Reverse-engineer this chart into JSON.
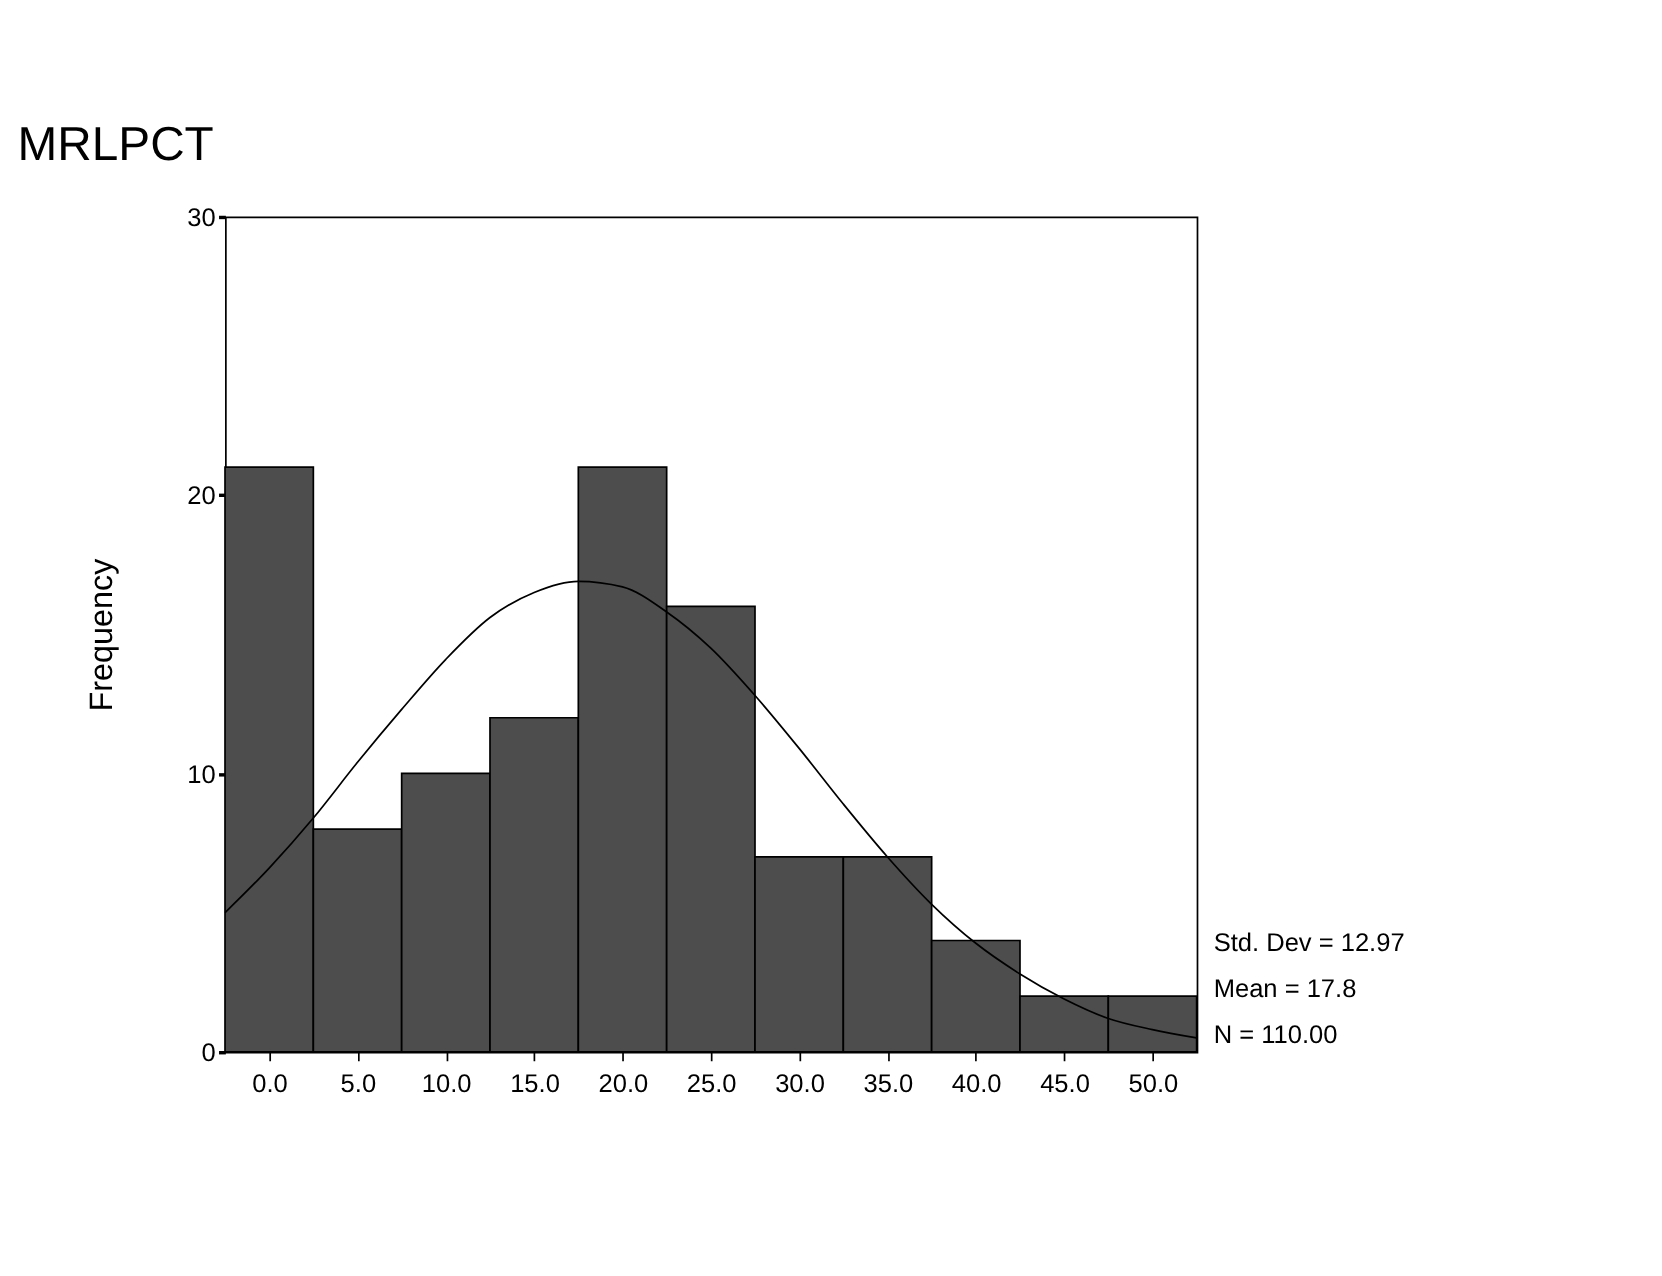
{
  "chart_data": {
    "type": "histogram",
    "title": "MRLPCT",
    "ylabel": "Frequency",
    "bins": [
      -2.5,
      2.5,
      7.5,
      12.5,
      17.5,
      22.5,
      27.5,
      32.5,
      37.5,
      42.5,
      47.5,
      52.5
    ],
    "values": [
      21,
      8,
      10,
      12,
      21,
      16,
      7,
      7,
      4,
      2,
      2
    ],
    "color": "#4d4d4d",
    "series": [
      {
        "type": "line",
        "color": "#000000",
        "x": [
          -2.5,
          0,
          2.5,
          5,
          7.5,
          10,
          12.5,
          15,
          17.5,
          20,
          22.5,
          25,
          27.5,
          30,
          32.5,
          35,
          37.5,
          40,
          42.5,
          45,
          47.5,
          50,
          52.5
        ],
        "values": [
          5.0,
          6.6,
          8.4,
          10.4,
          12.3,
          14.1,
          15.6,
          16.5,
          16.9,
          16.7,
          15.8,
          14.5,
          12.8,
          10.9,
          8.9,
          7.0,
          5.3,
          3.9,
          2.8,
          1.9,
          1.2,
          0.8,
          0.5
        ]
      }
    ],
    "xlim": [
      -2.5,
      52.5
    ],
    "xticks": [
      {
        "value": 0,
        "label": "0.0"
      },
      {
        "value": 5,
        "label": "5.0"
      },
      {
        "value": 10,
        "label": "10.0"
      },
      {
        "value": 15,
        "label": "15.0"
      },
      {
        "value": 20,
        "label": "20.0"
      },
      {
        "value": 25,
        "label": "25.0"
      },
      {
        "value": 30,
        "label": "30.0"
      },
      {
        "value": 35,
        "label": "35.0"
      },
      {
        "value": 40,
        "label": "40.0"
      },
      {
        "value": 45,
        "label": "45.0"
      },
      {
        "value": 50,
        "label": "50.0"
      }
    ],
    "ylim": [
      0,
      30
    ],
    "yticks": [
      0,
      10,
      20,
      30
    ],
    "grid": false,
    "annotations": [
      "Std. Dev = 12.97",
      "Mean = 17.8",
      "N = 110.00"
    ]
  }
}
